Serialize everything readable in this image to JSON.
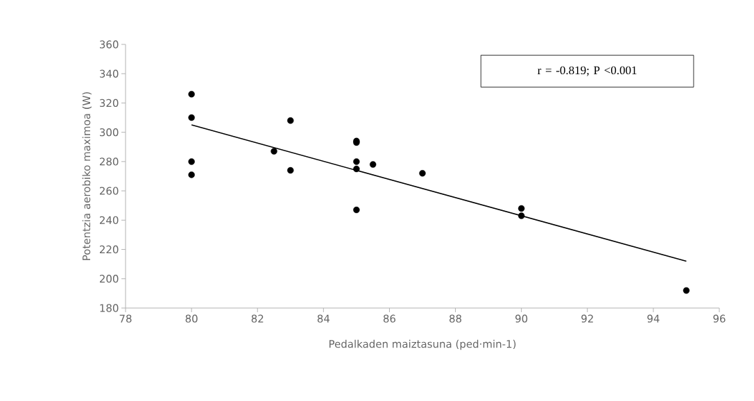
{
  "chart_data": {
    "type": "scatter",
    "xlabel": "Pedalkaden maiztasuna (ped·min-1)",
    "ylabel": "Potentzia aerobiko maximoa (W)",
    "xlim": [
      78,
      96
    ],
    "xticks": [
      78,
      80,
      82,
      84,
      86,
      88,
      90,
      92,
      94,
      96
    ],
    "ylim": [
      180,
      360
    ],
    "yticks": [
      180,
      200,
      220,
      240,
      260,
      280,
      300,
      320,
      340,
      360
    ],
    "grid": false,
    "series": [
      {
        "color": "#000000",
        "marker": "circle",
        "x": [
          80,
          80,
          80,
          80,
          82.5,
          83,
          83,
          85,
          85,
          85,
          85,
          85,
          85.5,
          87,
          90,
          90,
          95
        ],
        "values": [
          326,
          310,
          280,
          271,
          287,
          308,
          274,
          294,
          293,
          280,
          275,
          247,
          278,
          272,
          248,
          243,
          192
        ]
      },
      {
        "type": "line",
        "color": "#000000",
        "x": [
          80,
          95
        ],
        "values": [
          305,
          212
        ]
      }
    ],
    "annotations": [
      "r = -0.819; P <0.001"
    ]
  }
}
